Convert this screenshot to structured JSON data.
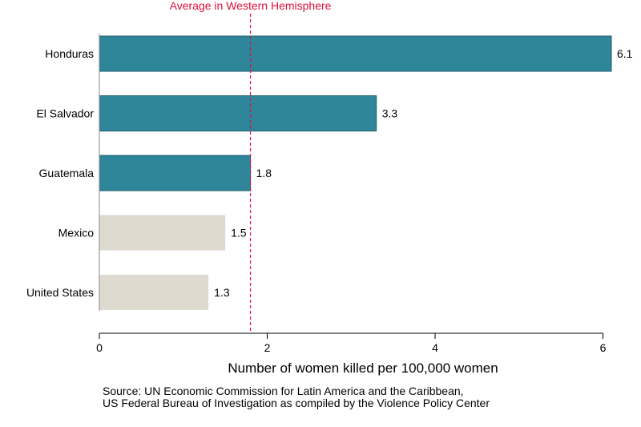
{
  "chart_data": {
    "type": "bar",
    "orientation": "horizontal",
    "categories": [
      "Honduras",
      "El Salvador",
      "Guatemala",
      "Mexico",
      "United States"
    ],
    "values": [
      6.1,
      3.3,
      1.8,
      1.5,
      1.3
    ],
    "value_labels": [
      "6.1",
      "3.3",
      "1.8",
      "1.5",
      "1.3"
    ],
    "bar_colors": [
      "#2f8599",
      "#2f8599",
      "#2f8599",
      "#dedad0",
      "#dedad0"
    ],
    "xlabel": "Number of women killed per 100,000 women",
    "xlim": [
      0,
      6.1
    ],
    "xticks": [
      0,
      2,
      4,
      6
    ],
    "xtick_labels": [
      "0",
      "2",
      "4",
      "6"
    ],
    "grid": false,
    "reference_line": {
      "value": 1.8,
      "label": "Average in Western Hemisphere",
      "color": "#e0103a",
      "style": "dashed"
    }
  },
  "source": {
    "line1": "Source: UN Economic Commission for Latin America and the Caribbean,",
    "line2": "US Federal Bureau of Investigation as compiled by the Violence Policy Center"
  }
}
